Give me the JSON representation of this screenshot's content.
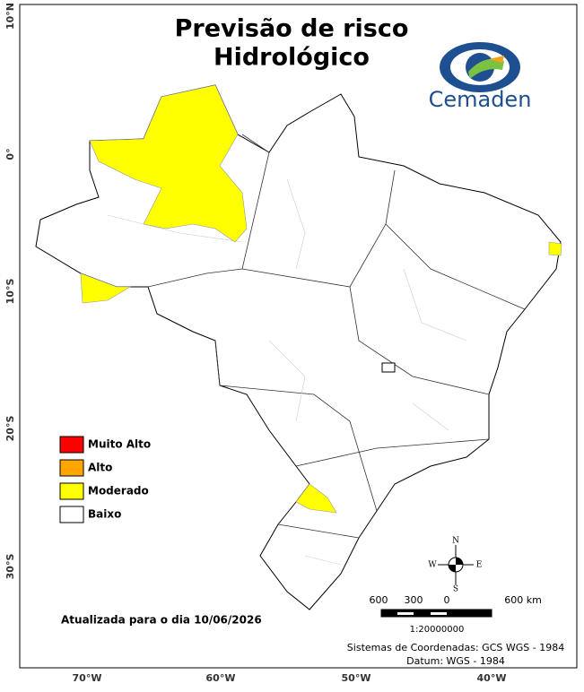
{
  "title": [
    "Previsão de risco",
    "Hidrológico"
  ],
  "logo": {
    "text": "Cemaden"
  },
  "lat_labels": [
    "10°N",
    "0°",
    "10°S",
    "20°S",
    "30°S"
  ],
  "lon_labels": [
    "70°W",
    "60°W",
    "50°W",
    "40°W"
  ],
  "legend": [
    {
      "label": "Muito Alto",
      "color": "#ff0000"
    },
    {
      "label": "Alto",
      "color": "#ffa500"
    },
    {
      "label": "Moderado",
      "color": "#ffff00"
    },
    {
      "label": "Baixo",
      "color": "#ffffff"
    }
  ],
  "updated": "Atualizada para o dia 10/06/2026",
  "compass": {
    "n": "N",
    "s": "S",
    "e": "E",
    "w": "W"
  },
  "scale": {
    "labels": [
      "600",
      "300",
      "0",
      "600 km"
    ],
    "ratio": "1:20000000"
  },
  "credits": [
    "Sistemas de Coordenadas: GCS WGS - 1984",
    "Datum: WGS - 1984"
  ]
}
